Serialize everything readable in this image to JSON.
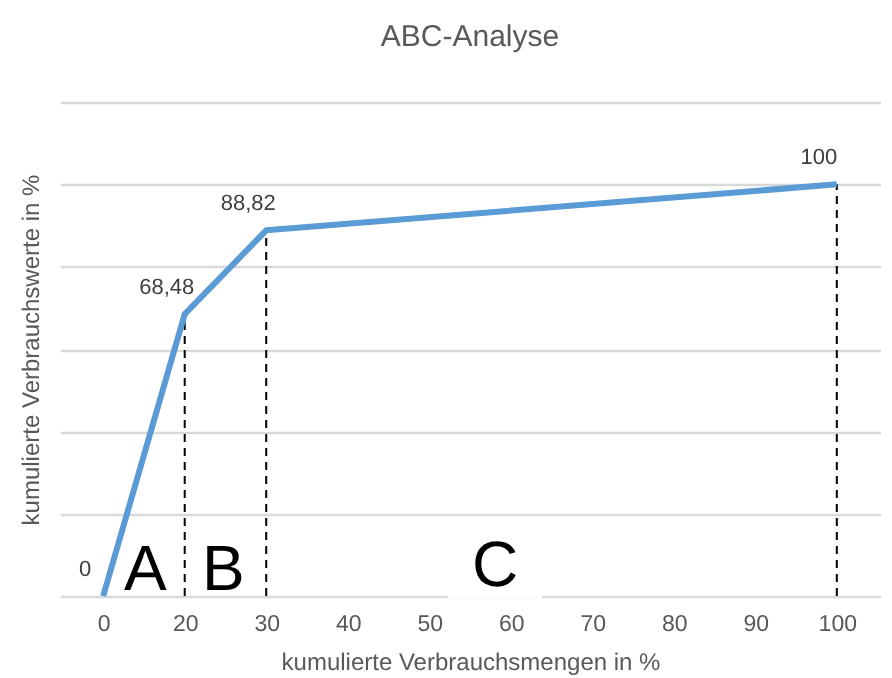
{
  "chart_data": {
    "type": "line",
    "title": "ABC-Analyse",
    "xlabel": "kumulierte Verbrauchsmengen in %",
    "ylabel": "kumulierte Verbrauchswerte in %",
    "categories": [
      "0",
      "20",
      "30",
      "40",
      "50",
      "60",
      "70",
      "80",
      "90",
      "100"
    ],
    "series": [
      {
        "color": "#5b9bd5",
        "values": [
          0,
          68.48,
          88.82,
          null,
          null,
          null,
          null,
          null,
          null,
          100
        ],
        "value_labels": [
          "0",
          "68,48",
          "88,82",
          null,
          null,
          null,
          null,
          null,
          null,
          "100"
        ]
      }
    ],
    "ylim": [
      0,
      120
    ],
    "yticks": [
      {
        "value": 0,
        "label": null
      },
      {
        "value": 20,
        "label": null
      },
      {
        "value": 40,
        "label": null
      },
      {
        "value": 60,
        "label": null
      },
      {
        "value": 80,
        "label": null
      },
      {
        "value": 100,
        "label": null
      },
      {
        "value": 120,
        "label": null
      }
    ],
    "grid": "y",
    "tick_labels": "x",
    "marker": "none",
    "line_style": "solid",
    "ref_lines": [
      {
        "axis": "x",
        "value": "20",
        "line_style": "dashed",
        "color": "#000000"
      },
      {
        "axis": "x",
        "value": "30",
        "line_style": "dashed",
        "color": "#000000"
      },
      {
        "axis": "x",
        "value": "100",
        "line_style": "dashed",
        "color": "#000000"
      }
    ],
    "annotations": [
      "A",
      "B",
      "C"
    ]
  }
}
